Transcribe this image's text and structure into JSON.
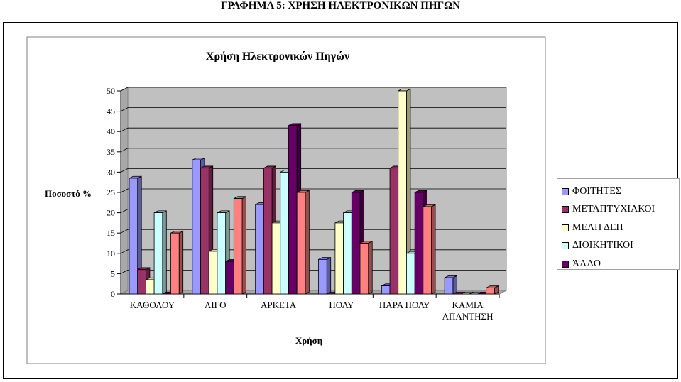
{
  "page": {
    "title": "ΓΡΑΦΗΜΑ 5: ΧΡΗΣΗ ΗΛΕΚΤΡΟΝΙΚΩΝ ΠΗΓΩΝ"
  },
  "chart_data": {
    "type": "bar",
    "title": "Χρήση Ηλεκτρονικών Πηγών",
    "xlabel": "Χρήση",
    "ylabel": "Ποσοστό %",
    "ylim": [
      0,
      50
    ],
    "yticks": [
      0,
      5,
      10,
      15,
      20,
      25,
      30,
      35,
      40,
      45,
      50
    ],
    "grid": true,
    "three_d": true,
    "legend_position": "right",
    "categories": [
      "ΚΑΘΟΛΟΥ",
      "ΛΙΓΟ",
      "ΑΡΚΕΤΑ",
      "ΠΟΛΥ",
      "ΠΑΡΑ ΠΟΛΥ",
      "ΚΑΜΙΑ ΑΠΑΝΤΗΣΗ"
    ],
    "series": [
      {
        "name": "ΦΟΙΤΗΤΕΣ",
        "color": "#9999ff",
        "values": [
          28.5,
          33,
          22,
          8.5,
          2,
          4
        ]
      },
      {
        "name": "ΜΕΤΑΠΤΥΧΙΑΚΟΙ",
        "color": "#993366",
        "values": [
          6,
          31,
          31,
          0,
          31,
          0
        ]
      },
      {
        "name": "ΜΕΛΗ ΔΕΠ",
        "color": "#ffffcc",
        "values": [
          3.5,
          10.5,
          17.5,
          17.5,
          50,
          0
        ]
      },
      {
        "name": "ΔΙΟΙΚΗΤΙΚΟΙ",
        "color": "#ccffff",
        "values": [
          20,
          20,
          30,
          20,
          10,
          0
        ]
      },
      {
        "name": "ΆΛΛΟ",
        "color": "#660066",
        "values": [
          0,
          8,
          41.5,
          25,
          25,
          0
        ]
      },
      {
        "color": "#ff8080",
        "values": [
          15,
          23.5,
          25,
          12.5,
          21.5,
          1.5
        ]
      }
    ]
  }
}
